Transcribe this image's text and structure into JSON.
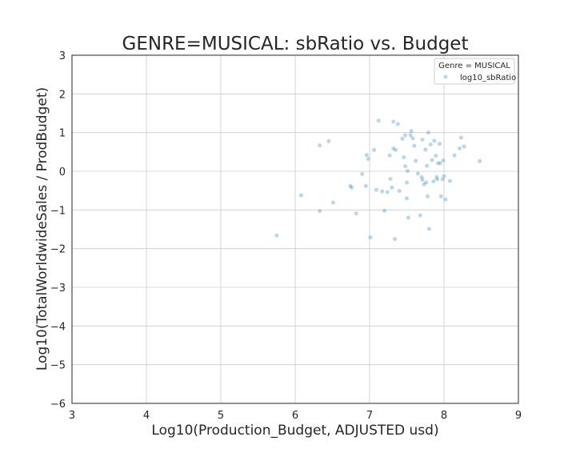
{
  "chart_data": {
    "type": "scatter",
    "title": "GENRE=MUSICAL: sbRatio vs. Budget",
    "xlabel": "Log10(Production_Budget, ADJUSTED usd)",
    "ylabel": "Log10(TotalWorldwideSales / ProdBudget)",
    "xlim": [
      3,
      9
    ],
    "ylim": [
      -6,
      3
    ],
    "xticks": [
      "3",
      "4",
      "5",
      "6",
      "7",
      "8",
      "9"
    ],
    "yticks": [
      "−6",
      "−5",
      "−4",
      "−3",
      "−2",
      "−1",
      "0",
      "1",
      "2",
      "3"
    ],
    "grid": true,
    "legend": {
      "title": "Genre = MUSICAL",
      "placement": "top-right",
      "entries": [
        "log10_sbRatio"
      ]
    },
    "marker_color": "#1f77b4",
    "series": [
      {
        "name": "log10_sbRatio",
        "points": [
          [
            5.75,
            -1.66
          ],
          [
            6.08,
            -0.62
          ],
          [
            6.33,
            -1.03
          ],
          [
            6.33,
            0.67
          ],
          [
            6.45,
            0.78
          ],
          [
            6.51,
            -0.81
          ],
          [
            6.74,
            -0.38
          ],
          [
            6.76,
            -0.42
          ],
          [
            6.82,
            -1.09
          ],
          [
            6.9,
            -0.07
          ],
          [
            6.95,
            -0.38
          ],
          [
            6.96,
            0.42
          ],
          [
            6.98,
            0.32
          ],
          [
            7.01,
            -1.71
          ],
          [
            7.06,
            0.55
          ],
          [
            7.09,
            -0.48
          ],
          [
            7.12,
            1.31
          ],
          [
            7.17,
            -0.52
          ],
          [
            7.2,
            -1.02
          ],
          [
            7.24,
            -0.54
          ],
          [
            7.27,
            0.41
          ],
          [
            7.28,
            -0.2
          ],
          [
            7.3,
            -0.42
          ],
          [
            7.32,
            1.28
          ],
          [
            7.32,
            0.59
          ],
          [
            7.34,
            -1.75
          ],
          [
            7.35,
            0.55
          ],
          [
            7.38,
            1.22
          ],
          [
            7.4,
            -0.51
          ],
          [
            7.44,
            0.84
          ],
          [
            7.46,
            0.36
          ],
          [
            7.48,
            0.93
          ],
          [
            7.48,
            0.13
          ],
          [
            7.5,
            -0.29
          ],
          [
            7.5,
            -0.7
          ],
          [
            7.51,
            0.01
          ],
          [
            7.52,
            -1.2
          ],
          [
            7.55,
            0.93
          ],
          [
            7.56,
            1.04
          ],
          [
            7.58,
            0.85
          ],
          [
            7.6,
            0.66
          ],
          [
            7.62,
            0.27
          ],
          [
            7.65,
            -0.06
          ],
          [
            7.68,
            -1.14
          ],
          [
            7.7,
            -0.15
          ],
          [
            7.71,
            -0.22
          ],
          [
            7.71,
            0.82
          ],
          [
            7.73,
            -0.34
          ],
          [
            7.75,
            0.56
          ],
          [
            7.76,
            -0.29
          ],
          [
            7.77,
            0.14
          ],
          [
            7.78,
            -0.65
          ],
          [
            7.79,
            1.0
          ],
          [
            7.8,
            -1.49
          ],
          [
            7.82,
            0.69
          ],
          [
            7.84,
            0.29
          ],
          [
            7.86,
            -0.26
          ],
          [
            7.87,
            0.79
          ],
          [
            7.89,
            0.4
          ],
          [
            7.9,
            -0.15
          ],
          [
            7.91,
            -0.21
          ],
          [
            7.92,
            0.21
          ],
          [
            7.94,
            0.71
          ],
          [
            7.95,
            0.21
          ],
          [
            7.96,
            -0.65
          ],
          [
            7.98,
            -0.21
          ],
          [
            7.99,
            0.28
          ],
          [
            8.0,
            -0.13
          ],
          [
            8.02,
            -0.73
          ],
          [
            8.08,
            -0.25
          ],
          [
            8.14,
            0.41
          ],
          [
            8.21,
            0.59
          ],
          [
            8.23,
            0.87
          ],
          [
            8.27,
            0.64
          ],
          [
            8.48,
            0.26
          ]
        ]
      }
    ]
  }
}
